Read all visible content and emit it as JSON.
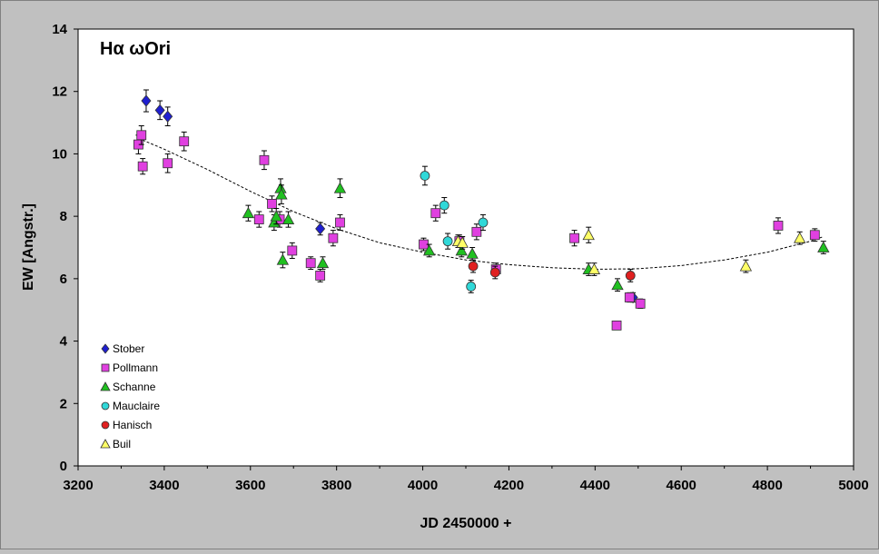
{
  "chart_data": {
    "type": "scatter",
    "title": "Hα ωOri",
    "xlabel": "JD 2450000 +",
    "ylabel": "EW [Angstr.]",
    "xlim": [
      3200,
      5000
    ],
    "ylim": [
      0,
      14
    ],
    "x_ticks": [
      "3200",
      "3400",
      "3600",
      "3800",
      "4000",
      "4200",
      "4400",
      "4600",
      "4800",
      "5000"
    ],
    "y_ticks": [
      "0",
      "2",
      "4",
      "6",
      "8",
      "10",
      "12",
      "14"
    ],
    "grid": false,
    "legend_position": "bottom-left",
    "trend": {
      "style": "dotted",
      "points": [
        [
          3340,
          10.5
        ],
        [
          3400,
          10.15
        ],
        [
          3500,
          9.5
        ],
        [
          3600,
          8.8
        ],
        [
          3700,
          8.15
        ],
        [
          3800,
          7.6
        ],
        [
          3900,
          7.15
        ],
        [
          4000,
          6.85
        ],
        [
          4100,
          6.6
        ],
        [
          4200,
          6.45
        ],
        [
          4300,
          6.35
        ],
        [
          4400,
          6.3
        ],
        [
          4500,
          6.32
        ],
        [
          4600,
          6.42
        ],
        [
          4700,
          6.6
        ],
        [
          4800,
          6.85
        ],
        [
          4900,
          7.2
        ],
        [
          4930,
          7.35
        ]
      ]
    },
    "series": [
      {
        "name": "Stober",
        "marker": "diamond",
        "color": "#1f1fd0",
        "points": [
          [
            3358,
            11.7
          ],
          [
            3390,
            11.4
          ],
          [
            3408,
            11.2
          ],
          [
            3762,
            7.6
          ],
          [
            4488,
            5.4
          ]
        ],
        "errors": [
          0.35,
          0.3,
          0.3,
          0.2,
          0.15
        ]
      },
      {
        "name": "Pollmann",
        "marker": "square",
        "color": "#e040e0",
        "points": [
          [
            3340,
            10.3
          ],
          [
            3347,
            10.6
          ],
          [
            3350,
            9.6
          ],
          [
            3408,
            9.7
          ],
          [
            3446,
            10.4
          ],
          [
            3620,
            7.9
          ],
          [
            3632,
            9.8
          ],
          [
            3650,
            8.4
          ],
          [
            3668,
            7.9
          ],
          [
            3697,
            6.9
          ],
          [
            3740,
            6.5
          ],
          [
            3762,
            6.1
          ],
          [
            3792,
            7.3
          ],
          [
            3808,
            7.8
          ],
          [
            4002,
            7.1
          ],
          [
            4030,
            8.1
          ],
          [
            4085,
            7.2
          ],
          [
            4125,
            7.5
          ],
          [
            4170,
            6.3
          ],
          [
            4352,
            7.3
          ],
          [
            4450,
            4.5
          ],
          [
            4480,
            5.4
          ],
          [
            4505,
            5.2
          ],
          [
            4825,
            7.7
          ],
          [
            4910,
            7.4
          ]
        ],
        "errors": [
          0.3,
          0.3,
          0.25,
          0.3,
          0.3,
          0.25,
          0.3,
          0.25,
          0.25,
          0.25,
          0.2,
          0.2,
          0.25,
          0.25,
          0.2,
          0.25,
          0.2,
          0.25,
          0.2,
          0.25,
          0.1,
          0.15,
          0.15,
          0.25,
          0.2
        ]
      },
      {
        "name": "Schanne",
        "marker": "triangle",
        "color": "#20c020",
        "points": [
          [
            3595,
            8.1
          ],
          [
            3655,
            7.8
          ],
          [
            3660,
            8.0
          ],
          [
            3670,
            8.9
          ],
          [
            3672,
            8.7
          ],
          [
            3675,
            6.6
          ],
          [
            3688,
            7.9
          ],
          [
            3768,
            6.5
          ],
          [
            3808,
            8.9
          ],
          [
            4015,
            6.9
          ],
          [
            4090,
            6.9
          ],
          [
            4115,
            6.8
          ],
          [
            4385,
            6.3
          ],
          [
            4452,
            5.8
          ],
          [
            4930,
            7.0
          ]
        ],
        "errors": [
          0.25,
          0.25,
          0.25,
          0.3,
          0.3,
          0.25,
          0.25,
          0.2,
          0.3,
          0.2,
          0.2,
          0.2,
          0.2,
          0.2,
          0.2
        ]
      },
      {
        "name": "Mauclaire",
        "marker": "circle",
        "color": "#30d8d8",
        "points": [
          [
            4005,
            9.3
          ],
          [
            4050,
            8.35
          ],
          [
            4058,
            7.2
          ],
          [
            4112,
            5.75
          ],
          [
            4140,
            7.8
          ]
        ],
        "errors": [
          0.3,
          0.25,
          0.25,
          0.2,
          0.25
        ]
      },
      {
        "name": "Hanisch",
        "marker": "circle",
        "color": "#e02020",
        "points": [
          [
            4117,
            6.4
          ],
          [
            4168,
            6.2
          ],
          [
            4482,
            6.1
          ]
        ],
        "errors": [
          0.2,
          0.2,
          0.2
        ]
      },
      {
        "name": "Buil",
        "marker": "triangle",
        "color": "#ffff66",
        "points": [
          [
            4082,
            7.2
          ],
          [
            4092,
            7.15
          ],
          [
            4385,
            7.4
          ],
          [
            4398,
            6.3
          ],
          [
            4750,
            6.4
          ],
          [
            4875,
            7.3
          ]
        ],
        "errors": [
          0.2,
          0.2,
          0.25,
          0.2,
          0.2,
          0.2
        ]
      }
    ]
  }
}
